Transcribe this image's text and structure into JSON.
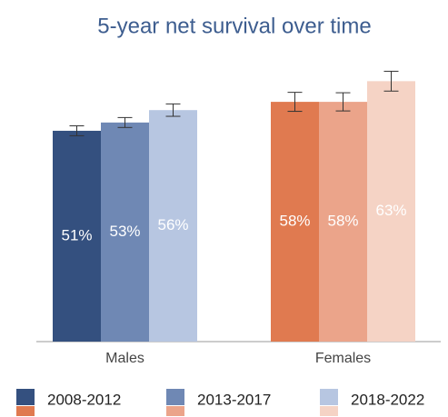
{
  "chart_data": {
    "type": "bar",
    "title": "5-year net survival over time",
    "categories": [
      "Males",
      "Females"
    ],
    "series": [
      {
        "name": "2008-2012",
        "colors": [
          "#34507f",
          "#e07a50"
        ],
        "values": [
          51,
          58
        ],
        "value_labels": [
          "51%",
          "58%"
        ],
        "errors": [
          1.2,
          2.3
        ]
      },
      {
        "name": "2013-2017",
        "colors": [
          "#6f88b4",
          "#eba48a"
        ],
        "values": [
          53,
          58
        ],
        "value_labels": [
          "53%",
          "58%"
        ],
        "errors": [
          1.2,
          2.2
        ]
      },
      {
        "name": "2018-2022",
        "colors": [
          "#b7c6e1",
          "#f5d3c5"
        ],
        "values": [
          56,
          63
        ],
        "value_labels": [
          "56%",
          "63%"
        ],
        "errors": [
          1.5,
          2.4
        ]
      }
    ]
  }
}
